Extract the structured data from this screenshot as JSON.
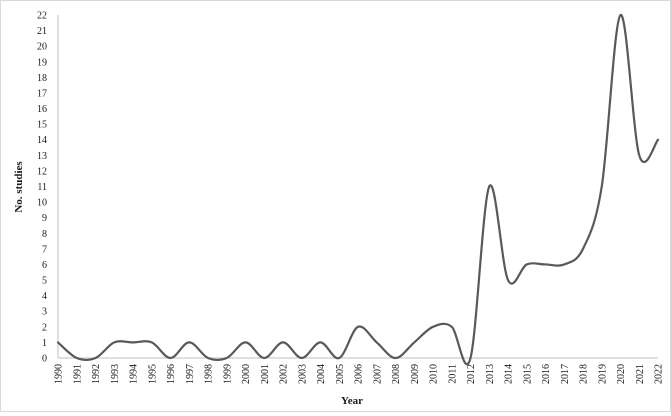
{
  "chart_data": {
    "type": "line",
    "title": "",
    "xlabel": "Year",
    "ylabel": "No. studies",
    "ylim": [
      0,
      22
    ],
    "yticks": [
      0,
      1,
      2,
      3,
      4,
      5,
      6,
      7,
      8,
      9,
      10,
      11,
      12,
      13,
      14,
      15,
      16,
      17,
      18,
      19,
      20,
      21,
      22
    ],
    "x": [
      "1990",
      "1991",
      "1992",
      "1993",
      "1994",
      "1995",
      "1996",
      "1997",
      "1998",
      "1999",
      "2000",
      "2001",
      "2002",
      "2003",
      "2004",
      "2005",
      "2006",
      "2007",
      "2008",
      "2009",
      "2010",
      "2011",
      "2012",
      "2013",
      "2014",
      "2015",
      "2016",
      "2017",
      "2018",
      "2019",
      "2020",
      "2021",
      "2022"
    ],
    "series": [
      {
        "values": [
          1,
          0,
          0,
          1,
          1,
          1,
          0,
          1,
          0,
          0,
          1,
          0,
          1,
          0,
          1,
          0,
          2,
          1,
          0,
          1,
          2,
          2,
          0,
          11,
          5,
          6,
          6,
          6,
          7,
          11,
          22,
          13,
          14
        ],
        "color": "#595959",
        "smooth": true
      }
    ],
    "grid": false,
    "legend": "none"
  }
}
